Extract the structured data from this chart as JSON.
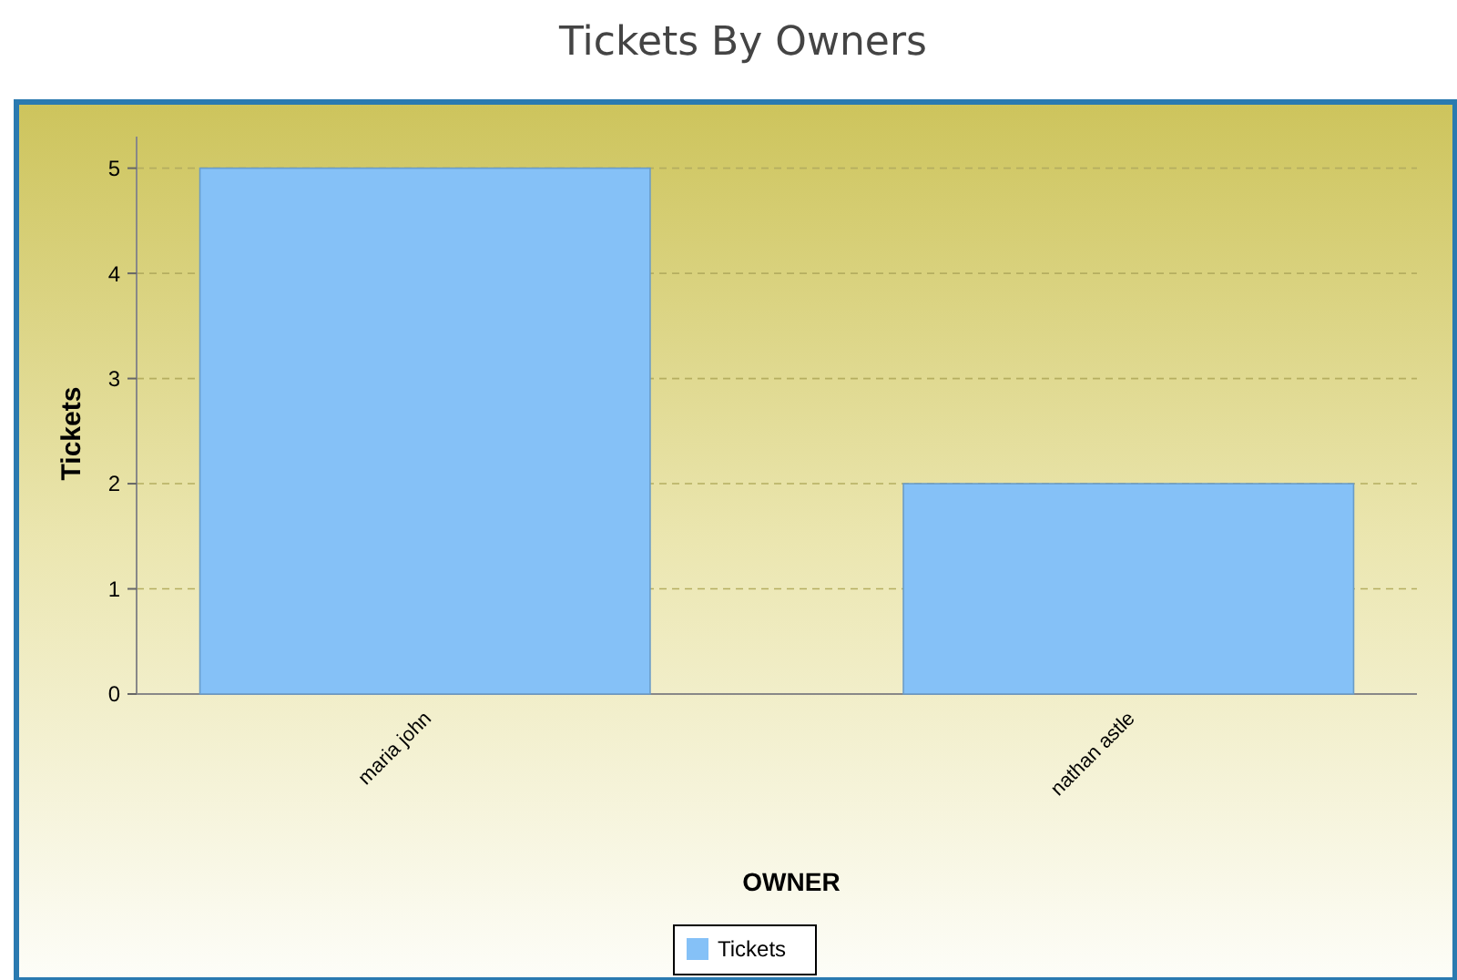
{
  "chart_data": {
    "type": "bar",
    "title": "Tickets By Owners",
    "xlabel": "OWNER",
    "ylabel": "Tickets",
    "categories": [
      "maria john",
      "nathan astle"
    ],
    "series": [
      {
        "name": "Tickets",
        "color": "#85c1f7",
        "values": [
          5,
          2
        ]
      }
    ],
    "ylim": [
      0,
      5.3
    ],
    "yticks": [
      0,
      1,
      2,
      3,
      4,
      5
    ],
    "grid": "y",
    "legend": "bottom"
  }
}
